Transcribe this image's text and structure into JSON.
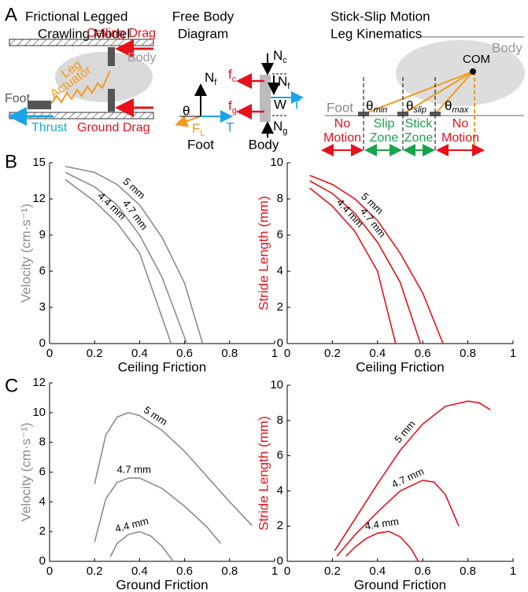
{
  "panel_letters": [
    "A",
    "B",
    "C"
  ],
  "panel_a": {
    "model": {
      "title": [
        "Frictional Legged",
        "Crawling Model"
      ],
      "ceiling_drag": "Ceiling Drag",
      "body": "Body",
      "leg": "Leg",
      "actuator": "Actuator",
      "foot": "Foot",
      "thrust": "Thrust",
      "ground_drag": "Ground Drag"
    },
    "fbd": {
      "title": [
        "Free Body",
        "Diagram"
      ],
      "foot": "Foot",
      "body": "Body",
      "foot_forces": [
        {
          "symbol": "N",
          "sub": "f"
        },
        {
          "symbol": "θ"
        },
        {
          "symbol": "F",
          "sub": "L"
        },
        {
          "symbol": "T"
        }
      ],
      "body_forces": [
        {
          "symbol": "N",
          "sub": "c"
        },
        {
          "symbol": "f",
          "sub": "c"
        },
        {
          "symbol": "N",
          "sub": "f"
        },
        {
          "symbol": "W"
        },
        {
          "symbol": "T"
        },
        {
          "symbol": "f",
          "sub": "g"
        },
        {
          "symbol": "N",
          "sub": "g"
        }
      ]
    },
    "kinematics": {
      "title": [
        "Stick-Slip Motion",
        "Leg Kinematics"
      ],
      "body": "Body",
      "com": "COM",
      "foot": "Foot",
      "angles": [
        {
          "symbol": "θ",
          "sub": "min"
        },
        {
          "symbol": "θ",
          "sub": "slip"
        },
        {
          "symbol": "θ",
          "sub": "max"
        }
      ],
      "zones": [
        [
          "No",
          "Motion"
        ],
        [
          "Slip",
          "Zone"
        ],
        [
          "Stick",
          "Zone"
        ],
        [
          "No",
          "Motion"
        ]
      ]
    }
  },
  "chart_data": [
    {
      "type": "line",
      "x_label": "Ceiling Friction",
      "y_label": "Velocity (cm·s⁻¹)",
      "y_label_color": "#8c8c8c",
      "xlim": [
        0,
        1
      ],
      "ylim": [
        0,
        15
      ],
      "xticks": [
        0,
        0.2,
        0.4,
        0.6,
        0.8,
        1
      ],
      "yticks": [
        0,
        3,
        6,
        9,
        12,
        15
      ],
      "series": [
        {
          "name": "5 mm",
          "color": "#8c8c8c",
          "x": [
            0.07,
            0.2,
            0.3,
            0.4,
            0.5,
            0.6,
            0.68
          ],
          "values": [
            14.7,
            14.2,
            13.2,
            11.5,
            8.8,
            5,
            0
          ]
        },
        {
          "name": "4.7 mm",
          "color": "#8c8c8c",
          "x": [
            0.07,
            0.2,
            0.3,
            0.4,
            0.5,
            0.61
          ],
          "values": [
            14.2,
            13,
            11.5,
            9,
            5.5,
            0
          ]
        },
        {
          "name": "4.4 mm",
          "color": "#8c8c8c",
          "x": [
            0.07,
            0.2,
            0.3,
            0.4,
            0.54
          ],
          "values": [
            13.6,
            11.8,
            10,
            7.5,
            0
          ]
        }
      ]
    },
    {
      "type": "line",
      "x_label": "Ceiling Friction",
      "y_label": "Stride Length (mm)",
      "y_label_color": "#e8101a",
      "xlim": [
        0,
        1
      ],
      "ylim": [
        0,
        10
      ],
      "xticks": [
        0,
        0.2,
        0.4,
        0.6,
        0.8,
        1
      ],
      "yticks": [
        0,
        2,
        4,
        6,
        8,
        10
      ],
      "series": [
        {
          "name": "5 mm",
          "color": "#e8101a",
          "x": [
            0.1,
            0.2,
            0.3,
            0.4,
            0.5,
            0.6,
            0.69
          ],
          "values": [
            9.3,
            8.8,
            8,
            6.8,
            5,
            2.8,
            0
          ]
        },
        {
          "name": "4.7 mm",
          "color": "#e8101a",
          "x": [
            0.1,
            0.2,
            0.3,
            0.4,
            0.5,
            0.59
          ],
          "values": [
            9,
            8.3,
            7.2,
            5.6,
            3.4,
            0
          ]
        },
        {
          "name": "4.4 mm",
          "color": "#e8101a",
          "x": [
            0.1,
            0.2,
            0.3,
            0.4,
            0.48
          ],
          "values": [
            8.6,
            7.6,
            6.2,
            4,
            0
          ]
        }
      ]
    },
    {
      "type": "line",
      "x_label": "Ground Friction",
      "y_label": "Velocity (cm·s⁻¹)",
      "y_label_color": "#8c8c8c",
      "xlim": [
        0,
        1
      ],
      "ylim": [
        0,
        12
      ],
      "xticks": [
        0,
        0.2,
        0.4,
        0.6,
        0.8,
        1
      ],
      "yticks": [
        0,
        2,
        4,
        6,
        8,
        10,
        12
      ],
      "series": [
        {
          "name": "5 mm",
          "color": "#8c8c8c",
          "x": [
            0.2,
            0.25,
            0.3,
            0.35,
            0.4,
            0.5,
            0.6,
            0.7,
            0.8,
            0.9
          ],
          "values": [
            5.2,
            8.5,
            9.7,
            10,
            9.8,
            8.8,
            7.4,
            5.7,
            4,
            2.4
          ]
        },
        {
          "name": "4.7 mm",
          "color": "#8c8c8c",
          "x": [
            0.2,
            0.25,
            0.3,
            0.35,
            0.4,
            0.5,
            0.6,
            0.7,
            0.76
          ],
          "values": [
            1.3,
            4.2,
            5.3,
            5.6,
            5.6,
            4.9,
            3.7,
            2.3,
            1.2
          ]
        },
        {
          "name": "4.4 mm",
          "color": "#8c8c8c",
          "x": [
            0.27,
            0.3,
            0.35,
            0.4,
            0.45,
            0.5,
            0.55
          ],
          "values": [
            0.3,
            1.2,
            1.8,
            2,
            1.7,
            1,
            0
          ]
        }
      ]
    },
    {
      "type": "line",
      "x_label": "Ground Friction",
      "y_label": "Stride Length (mm)",
      "y_label_color": "#e8101a",
      "xlim": [
        0,
        1
      ],
      "ylim": [
        0,
        10
      ],
      "xticks": [
        0,
        0.2,
        0.4,
        0.6,
        0.8,
        1
      ],
      "yticks": [
        0,
        2,
        4,
        6,
        8,
        10
      ],
      "series": [
        {
          "name": "5 mm",
          "color": "#e8101a",
          "x": [
            0.21,
            0.3,
            0.4,
            0.5,
            0.6,
            0.7,
            0.8,
            0.85,
            0.9
          ],
          "values": [
            0.6,
            2.4,
            4.4,
            6.3,
            7.8,
            8.8,
            9.1,
            9,
            8.6
          ]
        },
        {
          "name": "4.7 mm",
          "color": "#e8101a",
          "x": [
            0.22,
            0.3,
            0.4,
            0.5,
            0.6,
            0.65,
            0.7,
            0.76
          ],
          "values": [
            0.3,
            1.5,
            2.8,
            4,
            4.6,
            4.5,
            3.8,
            2
          ]
        },
        {
          "name": "4.4 mm",
          "color": "#e8101a",
          "x": [
            0.26,
            0.3,
            0.35,
            0.4,
            0.45,
            0.5,
            0.55,
            0.58
          ],
          "values": [
            0.3,
            0.8,
            1.3,
            1.6,
            1.7,
            1.4,
            0.7,
            0
          ]
        }
      ]
    }
  ]
}
